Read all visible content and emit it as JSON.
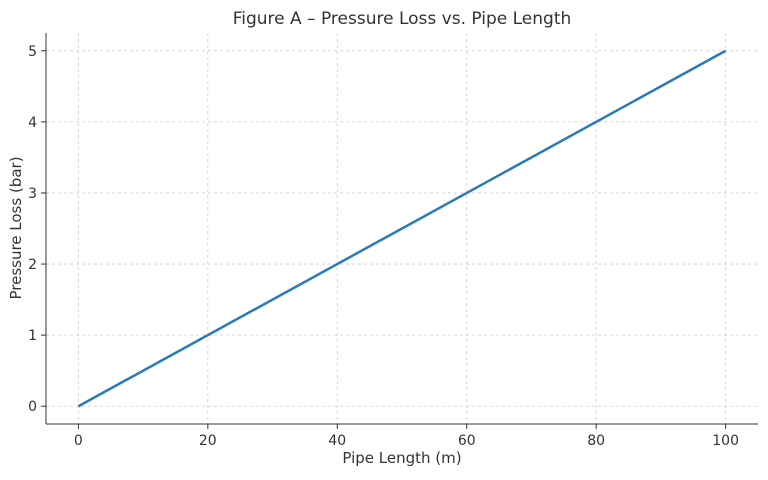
{
  "chart_data": {
    "type": "line",
    "title": "Figure A – Pressure Loss vs. Pipe Length",
    "xlabel": "Pipe Length (m)",
    "ylabel": "Pressure Loss (bar)",
    "xlim": [
      -5,
      105
    ],
    "ylim": [
      -0.25,
      5.25
    ],
    "xticks": [
      0,
      20,
      40,
      60,
      80,
      100
    ],
    "yticks": [
      0,
      1,
      2,
      3,
      4,
      5
    ],
    "xtick_labels": [
      "0",
      "20",
      "40",
      "60",
      "80",
      "100"
    ],
    "ytick_labels": [
      "0",
      "1",
      "2",
      "3",
      "4",
      "5"
    ],
    "grid": true,
    "series": [
      {
        "name": "Pressure Loss",
        "color": "#2a7ab8",
        "x": [
          0,
          100
        ],
        "y": [
          0,
          5
        ]
      }
    ]
  }
}
